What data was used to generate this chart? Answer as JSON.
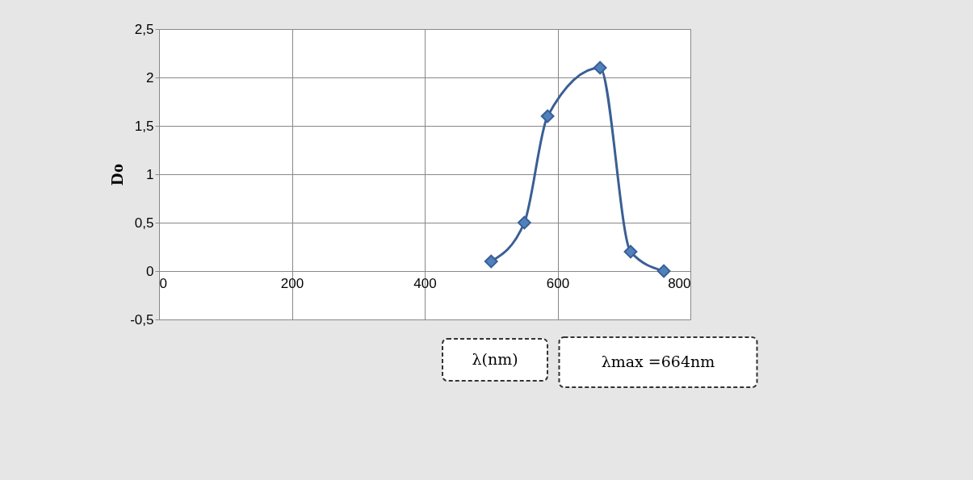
{
  "chart_data": {
    "type": "line",
    "xlabel": "λ(nm)",
    "ylabel": "Do",
    "annotations": [
      "λmax =664nm"
    ],
    "x": [
      500,
      550,
      585,
      664,
      710,
      760
    ],
    "series": [
      {
        "color": "#3a5f94",
        "values": [
          0.1,
          0.5,
          1.6,
          2.1,
          0.2,
          0.0
        ]
      }
    ],
    "xlim": [
      0,
      800
    ],
    "xticks": [
      0,
      200,
      400,
      600,
      800
    ],
    "ylim": [
      -0.5,
      2.5
    ],
    "yticks": [
      {
        "value": -0.5,
        "label": "-0,5"
      },
      0,
      {
        "value": 0.5,
        "label": "0,5"
      },
      1,
      {
        "value": 1.5,
        "label": "1,5"
      },
      2,
      {
        "value": 2.5,
        "label": "2,5"
      }
    ],
    "grid": true,
    "marker": "diamond",
    "line_style": "solid"
  }
}
